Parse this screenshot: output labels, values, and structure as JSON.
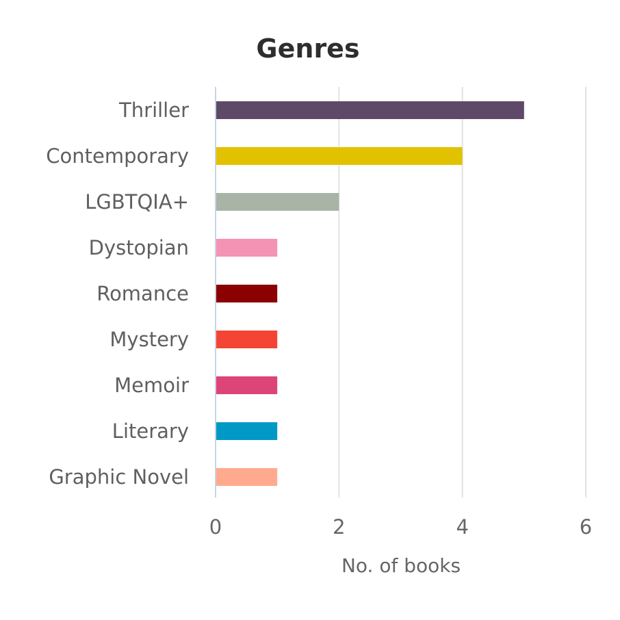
{
  "chart_data": {
    "type": "bar",
    "orientation": "horizontal",
    "title": "Genres",
    "xlabel": "No. of books",
    "ylabel": "",
    "xlim": [
      0,
      6
    ],
    "xticks": [
      0,
      2,
      4,
      6
    ],
    "grid": true,
    "legend": "none",
    "categories": [
      "Thriller",
      "Contemporary",
      "LGBTQIA+",
      "Dystopian",
      "Romance",
      "Mystery",
      "Memoir",
      "Literary",
      "Graphic Novel"
    ],
    "values": [
      5,
      4,
      2,
      1,
      1,
      1,
      1,
      1,
      1
    ],
    "colors": [
      "#5e4a68",
      "#e2c200",
      "#a7b4a6",
      "#f493b3",
      "#8b0000",
      "#f44436",
      "#dd4477",
      "#0099c6",
      "#ffaa8f"
    ]
  }
}
